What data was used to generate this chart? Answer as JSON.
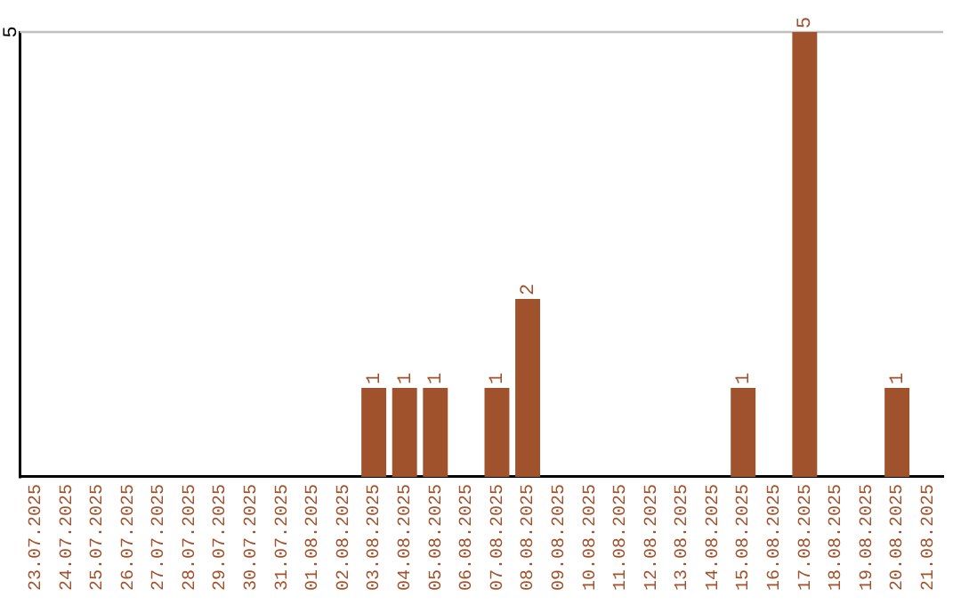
{
  "chart_data": {
    "type": "bar",
    "categories": [
      "23.07.2025",
      "24.07.2025",
      "25.07.2025",
      "26.07.2025",
      "27.07.2025",
      "28.07.2025",
      "29.07.2025",
      "30.07.2025",
      "31.07.2025",
      "01.08.2025",
      "02.08.2025",
      "03.08.2025",
      "04.08.2025",
      "05.08.2025",
      "06.08.2025",
      "07.08.2025",
      "08.08.2025",
      "09.08.2025",
      "10.08.2025",
      "11.08.2025",
      "12.08.2025",
      "13.08.2025",
      "14.08.2025",
      "15.08.2025",
      "16.08.2025",
      "17.08.2025",
      "18.08.2025",
      "19.08.2025",
      "20.08.2025",
      "21.08.2025"
    ],
    "values": [
      0,
      0,
      0,
      0,
      0,
      0,
      0,
      0,
      0,
      0,
      0,
      1,
      1,
      1,
      0,
      1,
      2,
      0,
      0,
      0,
      0,
      0,
      0,
      1,
      0,
      5,
      0,
      0,
      1,
      0
    ],
    "value_labels": [
      null,
      null,
      null,
      null,
      null,
      null,
      null,
      null,
      null,
      null,
      null,
      "1",
      "1",
      "1",
      null,
      "1",
      "2",
      null,
      null,
      null,
      null,
      null,
      null,
      "1",
      null,
      "5",
      null,
      null,
      "1",
      null
    ],
    "color": "#a0522d",
    "ylim": [
      0,
      5
    ],
    "yticks": [
      5
    ],
    "ref_lines": [
      {
        "axis": "y",
        "value": 5,
        "color": "#c0c0c0"
      }
    ],
    "legend": false
  }
}
